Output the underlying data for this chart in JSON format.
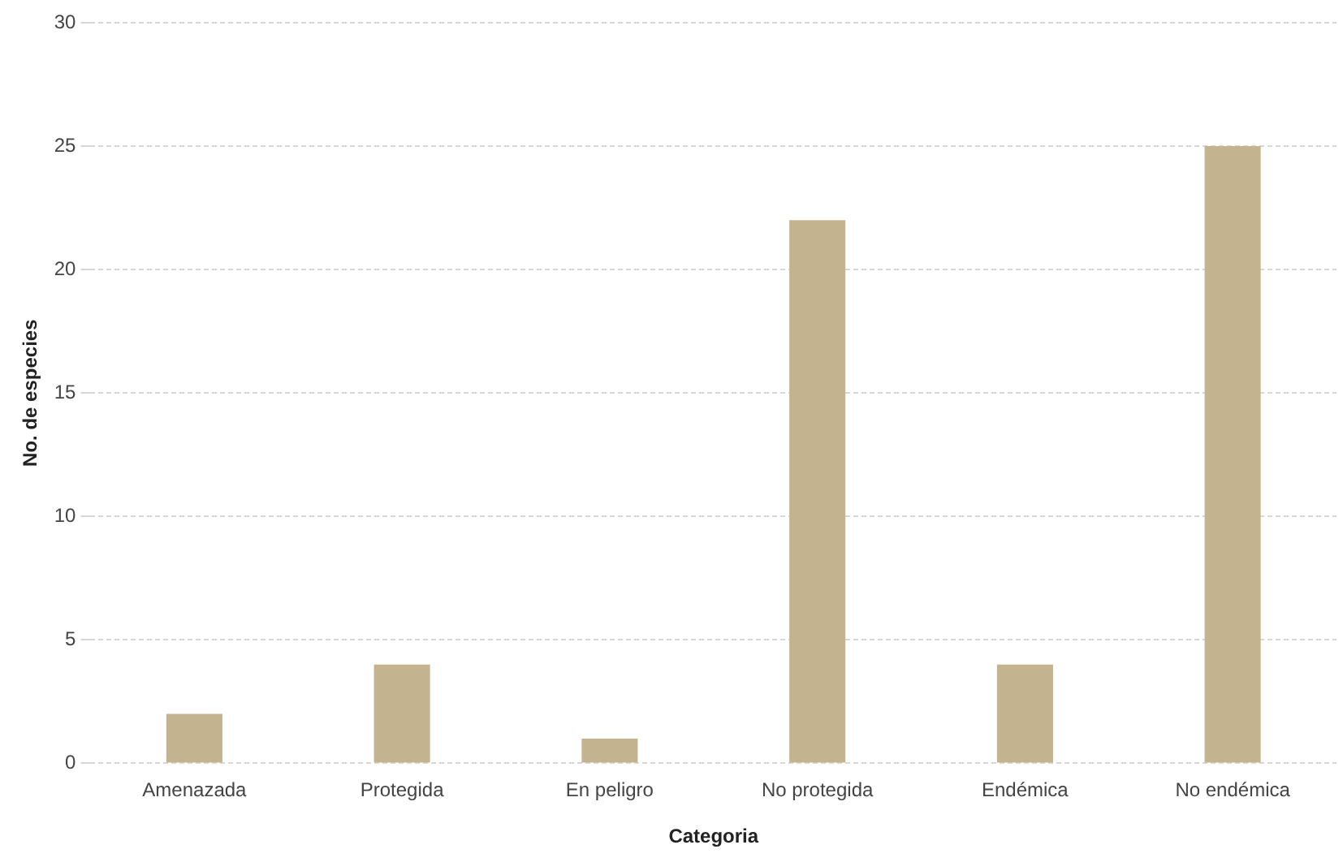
{
  "chart_data": {
    "type": "bar",
    "xlabel": "Categoria",
    "ylabel": "No. de especies",
    "categories": [
      "Amenazada",
      "Protegida",
      "En peligro",
      "No protegida",
      "Endémica",
      "No endémica"
    ],
    "values": [
      2,
      4,
      1,
      22,
      4,
      25
    ],
    "color": "#c4b38f",
    "ylim": [
      0,
      30
    ],
    "yticks": [
      0,
      5,
      10,
      15,
      20,
      25,
      30
    ],
    "grid": "y",
    "legend": false
  }
}
